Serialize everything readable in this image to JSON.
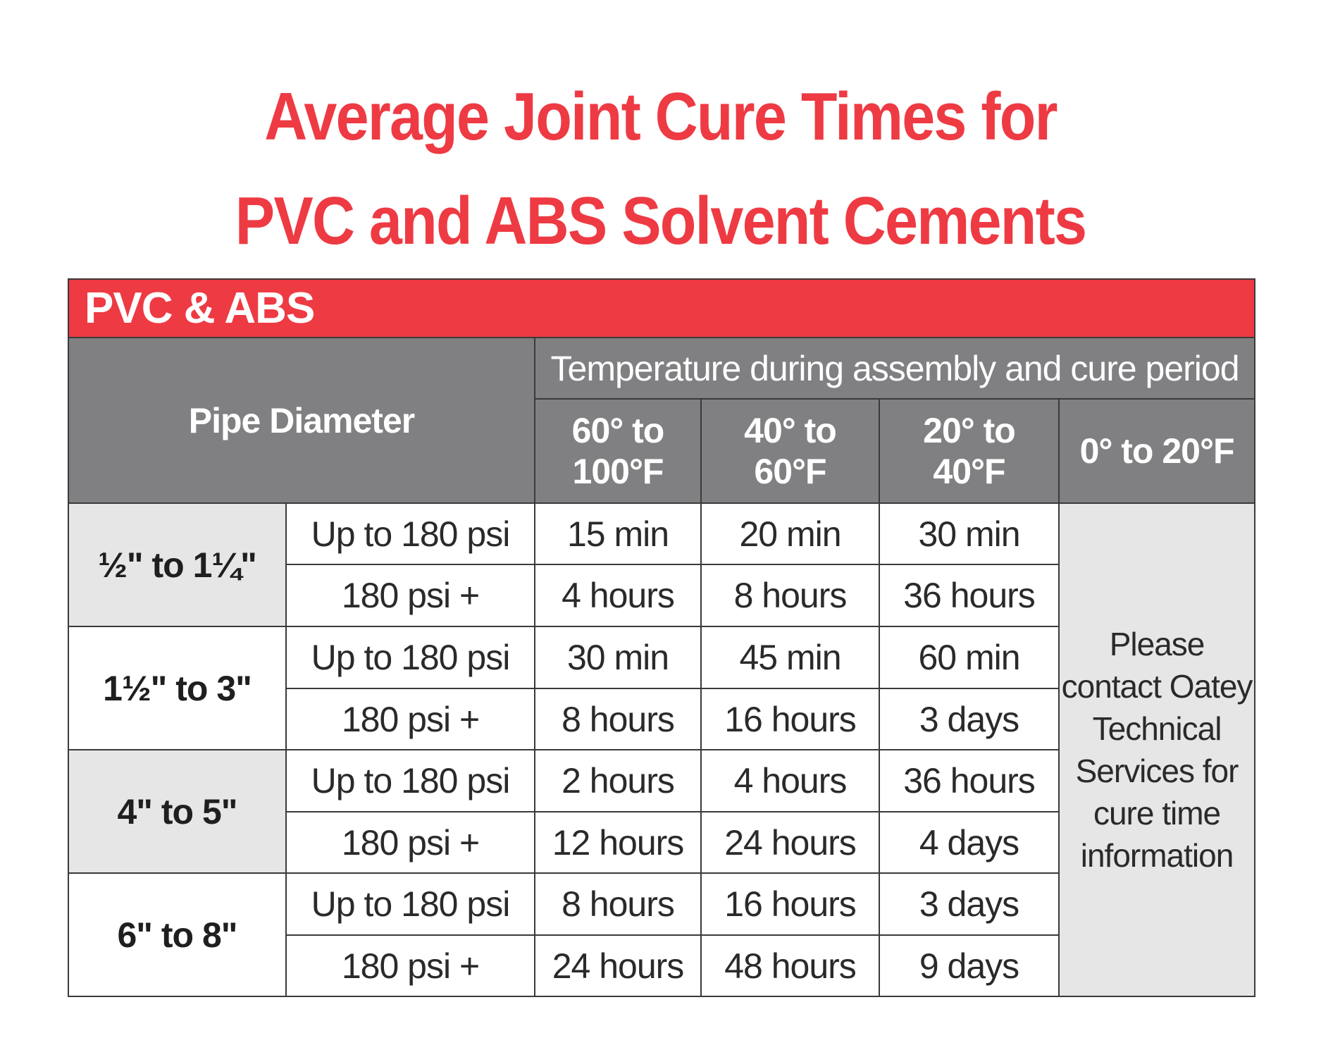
{
  "title": {
    "line1": "Average Joint Cure Times for",
    "line2": "PVC and ABS Solvent Cements"
  },
  "table": {
    "banner": "PVC & ABS",
    "pipe_diameter_header": "Pipe Diameter",
    "temperature_header": "Temperature during assembly and cure period",
    "temp_columns": [
      {
        "line1": "60° to",
        "line2": "100°F"
      },
      {
        "line1": "40° to",
        "line2": "60°F"
      },
      {
        "line1": "20° to",
        "line2": "40°F"
      },
      {
        "line1": "0° to 20°F",
        "line2": ""
      }
    ],
    "groups": [
      {
        "size": "½\" to 1¼\"",
        "rows": [
          {
            "pressure": "Up to 180 psi",
            "values": [
              "15 min",
              "20 min",
              "30 min"
            ]
          },
          {
            "pressure": "180 psi +",
            "values": [
              "4 hours",
              "8 hours",
              "36 hours"
            ]
          }
        ]
      },
      {
        "size": "1½\" to 3\"",
        "rows": [
          {
            "pressure": "Up to 180 psi",
            "values": [
              "30 min",
              "45 min",
              "60 min"
            ]
          },
          {
            "pressure": "180 psi +",
            "values": [
              "8 hours",
              "16 hours",
              "3 days"
            ]
          }
        ]
      },
      {
        "size": "4\" to 5\"",
        "rows": [
          {
            "pressure": "Up to 180 psi",
            "values": [
              "2 hours",
              "4 hours",
              "36 hours"
            ]
          },
          {
            "pressure": "180 psi +",
            "values": [
              "12 hours",
              "24 hours",
              "4 days"
            ]
          }
        ]
      },
      {
        "size": "6\" to 8\"",
        "rows": [
          {
            "pressure": "Up to 180 psi",
            "values": [
              "8 hours",
              "16 hours",
              "3 days"
            ]
          },
          {
            "pressure": "180 psi +",
            "values": [
              "24 hours",
              "48 hours",
              "9 days"
            ]
          }
        ]
      }
    ],
    "cold_note_lines": [
      "Please",
      "contact Oatey",
      "Technical",
      "Services for",
      "cure time",
      "information"
    ]
  },
  "colors": {
    "brand_red": "#ee3a43",
    "header_gray": "#808083",
    "row_shade": "#e6e6e7"
  }
}
